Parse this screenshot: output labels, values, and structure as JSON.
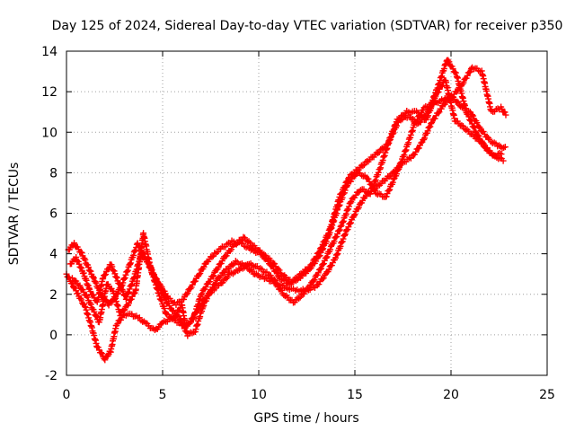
{
  "chart_data": {
    "type": "scatter",
    "title": "Day 125 of 2024, Sidereal Day-to-day VTEC variation (SDTVAR) for receiver p350",
    "xlabel": "GPS time / hours",
    "ylabel": "SDTVAR / TECUs",
    "xlim": [
      0,
      25
    ],
    "ylim": [
      -2,
      14
    ],
    "xticks": [
      0,
      5,
      10,
      15,
      20,
      25
    ],
    "yticks": [
      -2,
      0,
      2,
      4,
      6,
      8,
      10,
      12,
      14
    ],
    "grid": true,
    "marker": "+",
    "color": "#ff0000",
    "series": [
      {
        "x": [
          0.0,
          0.3,
          0.6,
          1.0,
          1.3,
          1.6,
          2.0,
          2.3,
          2.6,
          3.0,
          3.4,
          3.8,
          4.2,
          4.6,
          5.0,
          5.5,
          6.0,
          6.4,
          6.8,
          7.2,
          7.6,
          8.0,
          8.5,
          9.0,
          9.5,
          10.0,
          10.5,
          11.0,
          11.5,
          12.0,
          12.5,
          13.0,
          13.5,
          14.0,
          14.5,
          15.0,
          15.5,
          16.0,
          16.5,
          17.0,
          17.5,
          18.0,
          18.5,
          19.0,
          19.5,
          20.0,
          20.5,
          21.0,
          21.5,
          22.0,
          22.5,
          22.9
        ],
        "y": [
          3.0,
          2.5,
          2.0,
          1.3,
          0.4,
          -0.6,
          -1.2,
          -0.8,
          0.5,
          1.0,
          1.0,
          0.8,
          0.5,
          0.2,
          0.6,
          0.8,
          0.5,
          0.6,
          1.2,
          1.8,
          2.2,
          2.5,
          3.0,
          3.2,
          3.5,
          3.3,
          3.0,
          2.5,
          2.3,
          2.2,
          2.2,
          2.4,
          3.0,
          3.8,
          5.0,
          6.0,
          6.8,
          7.2,
          7.6,
          8.0,
          8.5,
          8.8,
          9.5,
          10.5,
          11.2,
          11.8,
          11.3,
          11.0,
          10.2,
          9.6,
          9.3,
          9.2
        ]
      },
      {
        "x": [
          0.1,
          0.4,
          0.8,
          1.1,
          1.5,
          1.8,
          2.2,
          2.5,
          2.9,
          3.3,
          3.7,
          4.1,
          4.5,
          4.9,
          5.3,
          5.7,
          6.1,
          6.5,
          6.9,
          7.3,
          7.7,
          8.1,
          8.6,
          9.1,
          9.6,
          10.1,
          10.6,
          11.1,
          11.6,
          12.1,
          12.6,
          13.1,
          13.6,
          14.1,
          14.6,
          15.1,
          15.6,
          16.1,
          16.6,
          17.1,
          17.6,
          18.1,
          18.6,
          19.1,
          19.6,
          20.1,
          20.6,
          21.1,
          21.6,
          22.1,
          22.6,
          22.9
        ],
        "y": [
          4.2,
          4.5,
          4.0,
          3.4,
          2.6,
          2.0,
          1.5,
          1.8,
          2.5,
          3.5,
          4.5,
          3.8,
          3.0,
          2.4,
          1.8,
          1.5,
          1.8,
          2.4,
          3.0,
          3.6,
          4.0,
          4.3,
          4.6,
          4.5,
          4.2,
          4.0,
          3.5,
          2.8,
          2.5,
          2.8,
          3.2,
          3.8,
          4.8,
          6.2,
          7.4,
          8.0,
          7.8,
          7.0,
          6.8,
          7.8,
          9.0,
          10.4,
          11.2,
          11.4,
          11.6,
          11.8,
          12.4,
          13.2,
          13.0,
          11.0,
          11.2,
          10.8
        ]
      },
      {
        "x": [
          0.2,
          0.5,
          0.9,
          1.2,
          1.6,
          1.9,
          2.3,
          2.7,
          3.1,
          3.5,
          3.9,
          4.3,
          4.7,
          5.1,
          5.5,
          5.9,
          6.3,
          6.7,
          7.1,
          7.5,
          7.9,
          8.3,
          8.8,
          9.3,
          9.8,
          10.3,
          10.8,
          11.3,
          11.8,
          12.3,
          12.8,
          13.3,
          13.8,
          14.3,
          14.8,
          15.3,
          15.8,
          16.3,
          16.8,
          17.3,
          17.8,
          18.3,
          18.8,
          19.3,
          19.8,
          20.3,
          20.8,
          21.3,
          21.8,
          22.3,
          22.8
        ],
        "y": [
          3.5,
          3.8,
          3.0,
          2.2,
          1.6,
          2.8,
          3.5,
          2.6,
          1.8,
          2.8,
          4.0,
          3.5,
          2.6,
          1.8,
          1.2,
          0.8,
          0.0,
          0.2,
          1.4,
          2.2,
          2.8,
          3.2,
          3.6,
          3.4,
          3.0,
          2.8,
          2.6,
          2.0,
          1.6,
          2.0,
          2.6,
          3.4,
          4.4,
          5.4,
          6.6,
          7.2,
          7.0,
          8.2,
          9.6,
          10.6,
          10.8,
          10.4,
          11.0,
          12.2,
          13.6,
          12.8,
          11.0,
          10.0,
          9.2,
          8.8,
          8.6
        ]
      },
      {
        "x": [
          0.3,
          0.7,
          1.1,
          1.4,
          1.7,
          2.1,
          2.4,
          2.8,
          3.2,
          3.6,
          4.0,
          4.4,
          4.8,
          5.2,
          5.6,
          6.0,
          6.2,
          6.6,
          7.0,
          7.4,
          7.8,
          8.2,
          8.7,
          9.2,
          9.7,
          10.2,
          10.7,
          11.2,
          11.7,
          12.2,
          12.7,
          13.2,
          13.7,
          14.2,
          14.7,
          15.2,
          15.7,
          16.2,
          16.7,
          17.2,
          17.7,
          18.2,
          18.7,
          19.2,
          19.7,
          20.2,
          20.7,
          21.2,
          21.7,
          22.2,
          22.7
        ],
        "y": [
          2.8,
          2.4,
          1.8,
          1.2,
          0.6,
          2.5,
          2.2,
          1.0,
          1.5,
          2.2,
          5.0,
          3.2,
          2.0,
          1.0,
          0.8,
          1.5,
          0.4,
          0.8,
          2.0,
          2.6,
          3.2,
          3.8,
          4.4,
          4.8,
          4.4,
          4.0,
          3.6,
          3.0,
          2.6,
          3.0,
          3.4,
          4.2,
          5.2,
          6.8,
          7.8,
          8.2,
          8.6,
          9.0,
          9.4,
          10.6,
          11.0,
          11.0,
          10.6,
          11.8,
          12.6,
          10.6,
          10.2,
          9.8,
          9.4,
          8.8,
          9.0
        ]
      }
    ]
  }
}
